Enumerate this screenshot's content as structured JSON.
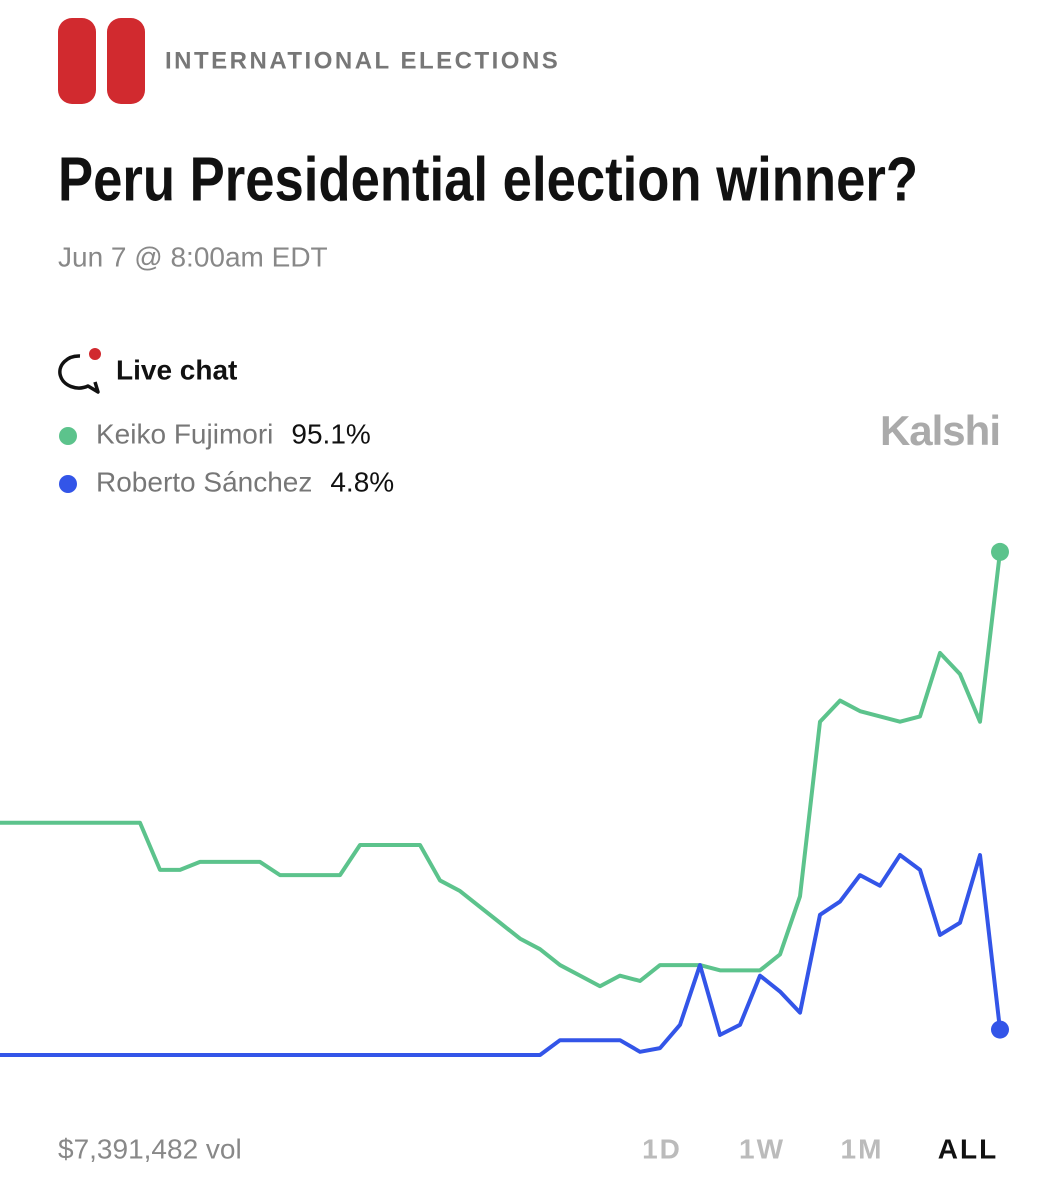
{
  "category": "INTERNATIONAL ELECTIONS",
  "live_chat": "Live chat",
  "brand": "Kalshi",
  "volume": "$7,391,482 vol",
  "ranges": [
    "1D",
    "1W",
    "1M",
    "ALL"
  ],
  "active_range": "ALL",
  "chart_data": {
    "type": "line",
    "title": "Peru Presidential election winner?",
    "subtitle": "Jun 7 @ 8:00am EDT",
    "ylim": [
      0,
      100
    ],
    "series": [
      {
        "name": "Keiko Fujimori",
        "color": "#5cc38c",
        "current": {
          "value": 95.1,
          "label": "95.1%"
        },
        "values": [
          43.9,
          43.9,
          43.9,
          43.9,
          43.9,
          43.9,
          43.9,
          43.9,
          35,
          35,
          36.5,
          36.5,
          36.5,
          36.5,
          34,
          34,
          34,
          34,
          39.7,
          39.7,
          39.7,
          39.7,
          33,
          31,
          28,
          25,
          22,
          20,
          17,
          15,
          13,
          15,
          14,
          17,
          17,
          17,
          16,
          16,
          16,
          19,
          30,
          63,
          67,
          65,
          64,
          63,
          64,
          76,
          72,
          63,
          95.1
        ]
      },
      {
        "name": "Roberto Sánchez",
        "color": "#3355e8",
        "current": {
          "value": 4.8,
          "label": "4.8%"
        },
        "values": [
          0,
          0,
          0,
          0,
          0,
          0,
          0,
          0,
          0,
          0,
          0,
          0,
          0,
          0,
          0,
          0,
          0,
          0,
          0,
          0,
          0,
          0,
          0,
          0,
          0,
          0,
          0,
          0,
          2.8,
          2.8,
          2.8,
          2.8,
          0.6,
          1.3,
          5.7,
          17,
          3.8,
          5.7,
          15,
          12,
          8,
          26.5,
          29,
          34,
          32,
          37.8,
          35,
          22.7,
          25,
          37.8,
          4.8
        ]
      }
    ]
  }
}
